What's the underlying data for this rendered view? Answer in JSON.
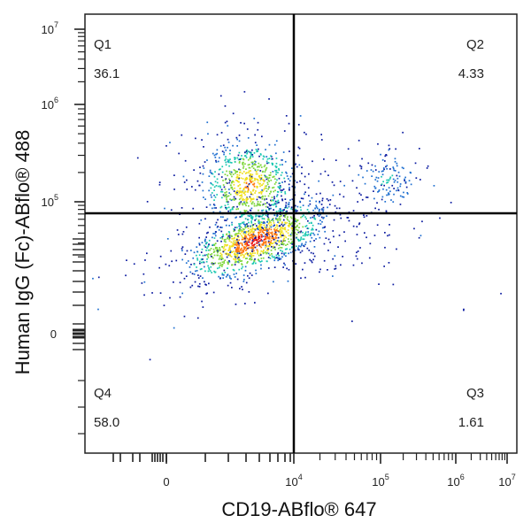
{
  "chart_data": {
    "type": "scatter",
    "subtype": "flow-cytometry-density-dot-plot",
    "title": "",
    "xlabel": "CD19-ABflo® 647",
    "ylabel": "Human IgG (Fc)-ABflo® 488",
    "x_scale": "biexponential",
    "y_scale": "biexponential",
    "x_ticks": [
      {
        "base": "0",
        "exp": ""
      },
      {
        "base": "10",
        "exp": "4"
      },
      {
        "base": "10",
        "exp": "5"
      },
      {
        "base": "10",
        "exp": "6"
      },
      {
        "base": "10",
        "exp": "7"
      }
    ],
    "y_ticks": [
      {
        "base": "0",
        "exp": ""
      },
      {
        "base": "10",
        "exp": "5"
      },
      {
        "base": "10",
        "exp": "6"
      },
      {
        "base": "10",
        "exp": "7"
      }
    ],
    "gate": {
      "x": 10000,
      "y": 50000
    },
    "quadrants": [
      {
        "name": "Q1",
        "value": "36.1"
      },
      {
        "name": "Q2",
        "value": "4.33"
      },
      {
        "name": "Q3",
        "value": "1.61"
      },
      {
        "name": "Q4",
        "value": "58.0"
      }
    ],
    "populations": [
      {
        "quadrant": "Q4",
        "x_center": 2000,
        "y_center": 10000,
        "percent": 58.0
      },
      {
        "quadrant": "Q1",
        "x_center": 1500,
        "y_center": 150000,
        "percent": 36.1
      },
      {
        "quadrant": "Q2",
        "x_center": 120000,
        "y_center": 170000,
        "percent": 4.33
      },
      {
        "quadrant": "Q3",
        "x_center": 40000,
        "y_center": 8000,
        "percent": 1.61
      }
    ],
    "colormap": [
      "#0a1aa0",
      "#1e6fd0",
      "#19c8b0",
      "#7ed63a",
      "#f0e020",
      "#ff7a10",
      "#e81010"
    ],
    "grid": false,
    "legend": "none"
  }
}
